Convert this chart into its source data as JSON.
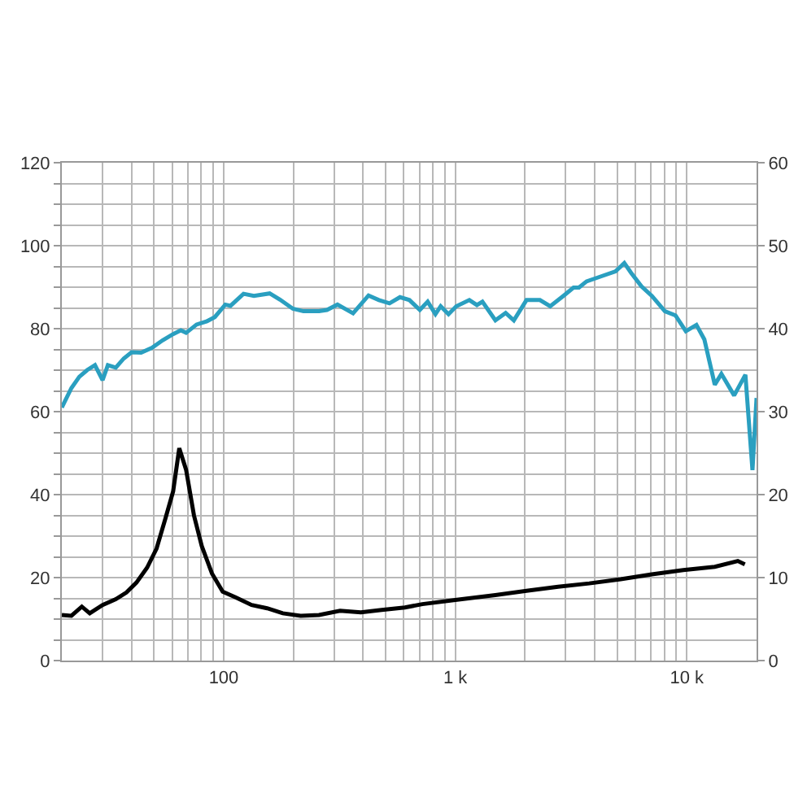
{
  "chart_data": {
    "type": "line",
    "log": "x",
    "grid": true,
    "marker": "none",
    "line_style": "solid",
    "xlim": [
      20,
      20000
    ],
    "xticks": [
      {
        "value": 20,
        "label": null
      },
      {
        "value": 30,
        "label": null
      },
      {
        "value": 40,
        "label": null
      },
      {
        "value": 50,
        "label": null
      },
      {
        "value": 60,
        "label": null
      },
      {
        "value": 70,
        "label": null
      },
      {
        "value": 80,
        "label": null
      },
      {
        "value": 90,
        "label": null
      },
      {
        "value": 100,
        "label": "100"
      },
      {
        "value": 200,
        "label": null
      },
      {
        "value": 300,
        "label": null
      },
      {
        "value": 400,
        "label": null
      },
      {
        "value": 500,
        "label": null
      },
      {
        "value": 600,
        "label": null
      },
      {
        "value": 700,
        "label": null
      },
      {
        "value": 800,
        "label": null
      },
      {
        "value": 900,
        "label": null
      },
      {
        "value": 1000,
        "label": "1 k"
      },
      {
        "value": 2000,
        "label": null
      },
      {
        "value": 3000,
        "label": null
      },
      {
        "value": 4000,
        "label": null
      },
      {
        "value": 5000,
        "label": null
      },
      {
        "value": 6000,
        "label": null
      },
      {
        "value": 7000,
        "label": null
      },
      {
        "value": 8000,
        "label": null
      },
      {
        "value": 9000,
        "label": null
      },
      {
        "value": 10000,
        "label": "10 k"
      },
      {
        "value": 20000,
        "label": null
      }
    ],
    "ylim": [
      0,
      120
    ],
    "yticks": [
      0,
      {
        "value": 5,
        "label": null
      },
      {
        "value": 10,
        "label": null
      },
      {
        "value": 15,
        "label": null
      },
      20,
      {
        "value": 25,
        "label": null
      },
      {
        "value": 30,
        "label": null
      },
      {
        "value": 35,
        "label": null
      },
      40,
      {
        "value": 45,
        "label": null
      },
      {
        "value": 50,
        "label": null
      },
      {
        "value": 55,
        "label": null
      },
      60,
      {
        "value": 65,
        "label": null
      },
      {
        "value": 70,
        "label": null
      },
      {
        "value": 75,
        "label": null
      },
      80,
      {
        "value": 85,
        "label": null
      },
      {
        "value": 90,
        "label": null
      },
      {
        "value": 95,
        "label": null
      },
      100,
      {
        "value": 105,
        "label": null
      },
      {
        "value": 110,
        "label": null
      },
      {
        "value": 115,
        "label": null
      },
      120
    ],
    "y2lim": [
      0,
      60
    ],
    "y2ticks": [
      0,
      10,
      20,
      30,
      40,
      50,
      60
    ],
    "series": [
      {
        "color": "#2a9fc0",
        "x": [
          20,
          22,
          23.8,
          25.7,
          27.8,
          30,
          31.6,
          34.2,
          37,
          40,
          44,
          49,
          54.5,
          60.5,
          65.3,
          68.8,
          76.4,
          84.7,
          91.6,
          101.6,
          107,
          121.8,
          135,
          158,
          175,
          199,
          221,
          258,
          279,
          310,
          362,
          422,
          468,
          520,
          577,
          634,
          703,
          760,
          821,
          865,
          935,
          1010,
          1150,
          1240,
          1310,
          1490,
          1650,
          1790,
          2030,
          2320,
          2570,
          2930,
          3240,
          3420,
          3690,
          4210,
          4920,
          5370,
          5740,
          6370,
          7060,
          8040,
          8930,
          9900,
          11000,
          11900,
          13200,
          14100,
          16000,
          17900,
          19200,
          20000
        ],
        "values": [
          61,
          65.7,
          68.4,
          70,
          71.2,
          67.6,
          71.2,
          70.6,
          72.8,
          74.3,
          74.2,
          75.4,
          77.2,
          78.7,
          79.6,
          79,
          81,
          81.8,
          82.8,
          85.8,
          85.5,
          88.4,
          87.9,
          88.5,
          87,
          84.8,
          84.2,
          84.2,
          84.5,
          85.8,
          83.7,
          88,
          86.9,
          86.1,
          87.6,
          86.9,
          84.5,
          86.5,
          83.5,
          85.4,
          83.5,
          85.4,
          86.9,
          85.7,
          86.5,
          82,
          83.8,
          82,
          86.9,
          86.9,
          85.4,
          87.9,
          89.9,
          89.9,
          91.4,
          92.5,
          93.8,
          95.8,
          93.5,
          90.2,
          87.9,
          84.2,
          83.2,
          79.4,
          80.9,
          77.4,
          66.5,
          69.1,
          63.9,
          68.9,
          45.9,
          63.3
        ]
      },
      {
        "color": "#000000",
        "axis": "y2",
        "x": [
          20,
          22,
          24.4,
          26.4,
          30,
          34.2,
          38,
          42,
          46.7,
          51.3,
          56,
          60.5,
          64.3,
          68.8,
          74.4,
          80.4,
          89,
          99,
          113,
          132,
          154,
          180,
          215,
          258,
          318,
          391,
          481,
          606,
          721,
          1000,
          1490,
          2030,
          2780,
          3790,
          5180,
          7060,
          9650,
          13200,
          16600,
          17800
        ],
        "values": [
          5.5,
          5.4,
          6.5,
          5.7,
          6.7,
          7.4,
          8.2,
          9.4,
          11.2,
          13.5,
          17.1,
          20.4,
          25.6,
          23,
          17.5,
          13.8,
          10.5,
          8.3,
          7.6,
          6.7,
          6.3,
          5.7,
          5.4,
          5.5,
          6,
          5.8,
          6.1,
          6.4,
          6.8,
          7.3,
          7.9,
          8.4,
          8.9,
          9.3,
          9.8,
          10.4,
          10.9,
          11.3,
          12,
          11.6
        ]
      }
    ]
  }
}
